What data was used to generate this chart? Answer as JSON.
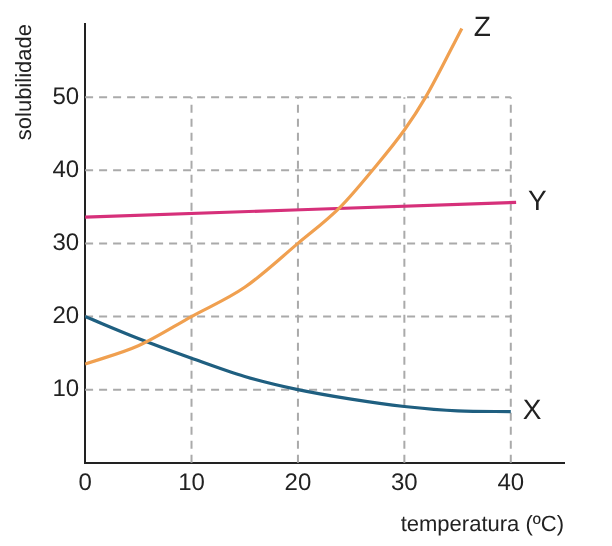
{
  "chart_data": {
    "type": "line",
    "xlabel": "temperatura (ºC)",
    "ylabel": "solubilidade",
    "xlim": [
      0,
      45
    ],
    "xticks": [
      0,
      10,
      20,
      30,
      40
    ],
    "ylim": [
      0,
      60
    ],
    "yticks": [
      10,
      20,
      30,
      40,
      50
    ],
    "grid": true,
    "legend": false,
    "marker": "none",
    "line_style": "solid",
    "series": [
      {
        "name": "Z",
        "color": "#f0a050",
        "x": [
          0,
          5,
          10,
          15,
          20,
          24,
          27,
          30,
          32,
          35.4
        ],
        "values": [
          13.5,
          16,
          20,
          24,
          30,
          35,
          40,
          45.5,
          50,
          59.4
        ]
      },
      {
        "name": "Y",
        "color": "#d6307a",
        "x": [
          0,
          40.5
        ],
        "values": [
          33.6,
          35.6
        ]
      },
      {
        "name": "X",
        "color": "#1f5f80",
        "x": [
          0,
          5,
          10,
          15,
          20,
          25,
          30,
          35,
          40
        ],
        "values": [
          20,
          17,
          14.3,
          11.8,
          10,
          8.7,
          7.7,
          7.1,
          7
        ]
      }
    ]
  }
}
